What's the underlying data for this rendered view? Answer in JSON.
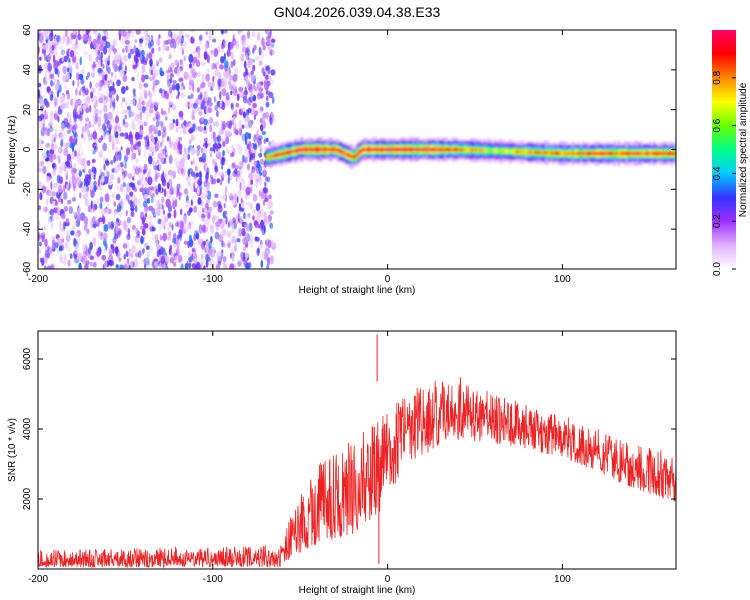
{
  "title": "GN04.2026.039.04.38.E33",
  "chart_data": [
    {
      "type": "heatmap",
      "xlabel": "Height of straight line (km)",
      "ylabel": "Frequency (Hz)",
      "xlim": [
        -200,
        165
      ],
      "ylim": [
        -60,
        60
      ],
      "xticks": [
        -200,
        -100,
        0,
        100
      ],
      "yticks": [
        -60,
        -40,
        -20,
        0,
        20,
        40,
        60
      ],
      "colorbar": {
        "label": "Normalized spectral amplitude",
        "range": [
          0,
          1
        ],
        "ticks": [
          0.0,
          0.2,
          0.4,
          0.6,
          0.8
        ],
        "colors": [
          "#ffffff",
          "#e0b0ff",
          "#9b30ff",
          "#3333ff",
          "#00ccff",
          "#00ff88",
          "#66ff00",
          "#ffff00",
          "#ff8800",
          "#ff0000",
          "#ff0066"
        ]
      },
      "noise_region": {
        "x_range": [
          -200,
          -65
        ],
        "y_range": [
          -60,
          60
        ],
        "amplitude_range": [
          0.0,
          0.3
        ]
      },
      "signal_band": {
        "x_range": [
          -70,
          165
        ],
        "center_frequency": [
          {
            "x": -70,
            "y": -4
          },
          {
            "x": -60,
            "y": -2
          },
          {
            "x": -50,
            "y": 0
          },
          {
            "x": -30,
            "y": 0
          },
          {
            "x": -20,
            "y": -4
          },
          {
            "x": -15,
            "y": 0
          },
          {
            "x": 0,
            "y": 0
          },
          {
            "x": 40,
            "y": 0
          },
          {
            "x": 70,
            "y": -1
          },
          {
            "x": 100,
            "y": -2
          },
          {
            "x": 165,
            "y": -2
          }
        ],
        "peak_amplitude": [
          {
            "x": -70,
            "y": 0.75
          },
          {
            "x": -50,
            "y": 0.95
          },
          {
            "x": -20,
            "y": 0.9
          },
          {
            "x": 0,
            "y": 1.0
          },
          {
            "x": 30,
            "y": 0.9
          },
          {
            "x": 60,
            "y": 0.65
          },
          {
            "x": 90,
            "y": 0.8
          },
          {
            "x": 130,
            "y": 0.85
          },
          {
            "x": 165,
            "y": 0.9
          }
        ]
      }
    },
    {
      "type": "line",
      "xlabel": "Height of straight line (km)",
      "ylabel": "SNR (10 * v/v)",
      "xlim": [
        -200,
        165
      ],
      "ylim": [
        0,
        6800
      ],
      "xticks": [
        -200,
        -100,
        0,
        100
      ],
      "yticks": [
        2000,
        4000,
        6000
      ],
      "color": "#ee2222",
      "series": [
        {
          "x": [
            -200,
            -150,
            -100,
            -70,
            -60,
            -55,
            -50,
            -40,
            -30,
            -20,
            -15,
            -10,
            -8,
            -6,
            -5,
            0,
            10,
            20,
            30,
            35,
            40,
            50,
            60,
            80,
            100,
            120,
            140,
            150,
            165
          ],
          "y": [
            250,
            250,
            300,
            300,
            500,
            1000,
            1800,
            2300,
            2600,
            3000,
            3400,
            3300,
            5500,
            6700,
            3800,
            3600,
            4200,
            4800,
            5000,
            5100,
            4900,
            4600,
            4400,
            4200,
            3900,
            3600,
            3200,
            3000,
            2800
          ],
          "noise_band": [
            {
              "x": -200,
              "lo": 50,
              "hi": 550
            },
            {
              "x": -60,
              "lo": 50,
              "hi": 700
            },
            {
              "x": -55,
              "lo": 300,
              "hi": 1700
            },
            {
              "x": -40,
              "lo": 700,
              "hi": 3000
            },
            {
              "x": -20,
              "lo": 1000,
              "hi": 3700
            },
            {
              "x": -5,
              "lo": 1600,
              "hi": 4300
            },
            {
              "x": 10,
              "lo": 2900,
              "hi": 5000
            },
            {
              "x": 35,
              "lo": 3700,
              "hi": 5700
            },
            {
              "x": 60,
              "lo": 3600,
              "hi": 5000
            },
            {
              "x": 100,
              "lo": 3200,
              "hi": 4400
            },
            {
              "x": 140,
              "lo": 2300,
              "hi": 3600
            },
            {
              "x": 165,
              "lo": 1900,
              "hi": 3300
            }
          ],
          "spikes": [
            {
              "x": -6,
              "y": 6700
            },
            {
              "x": -5,
              "y": 150
            }
          ]
        }
      ]
    }
  ]
}
